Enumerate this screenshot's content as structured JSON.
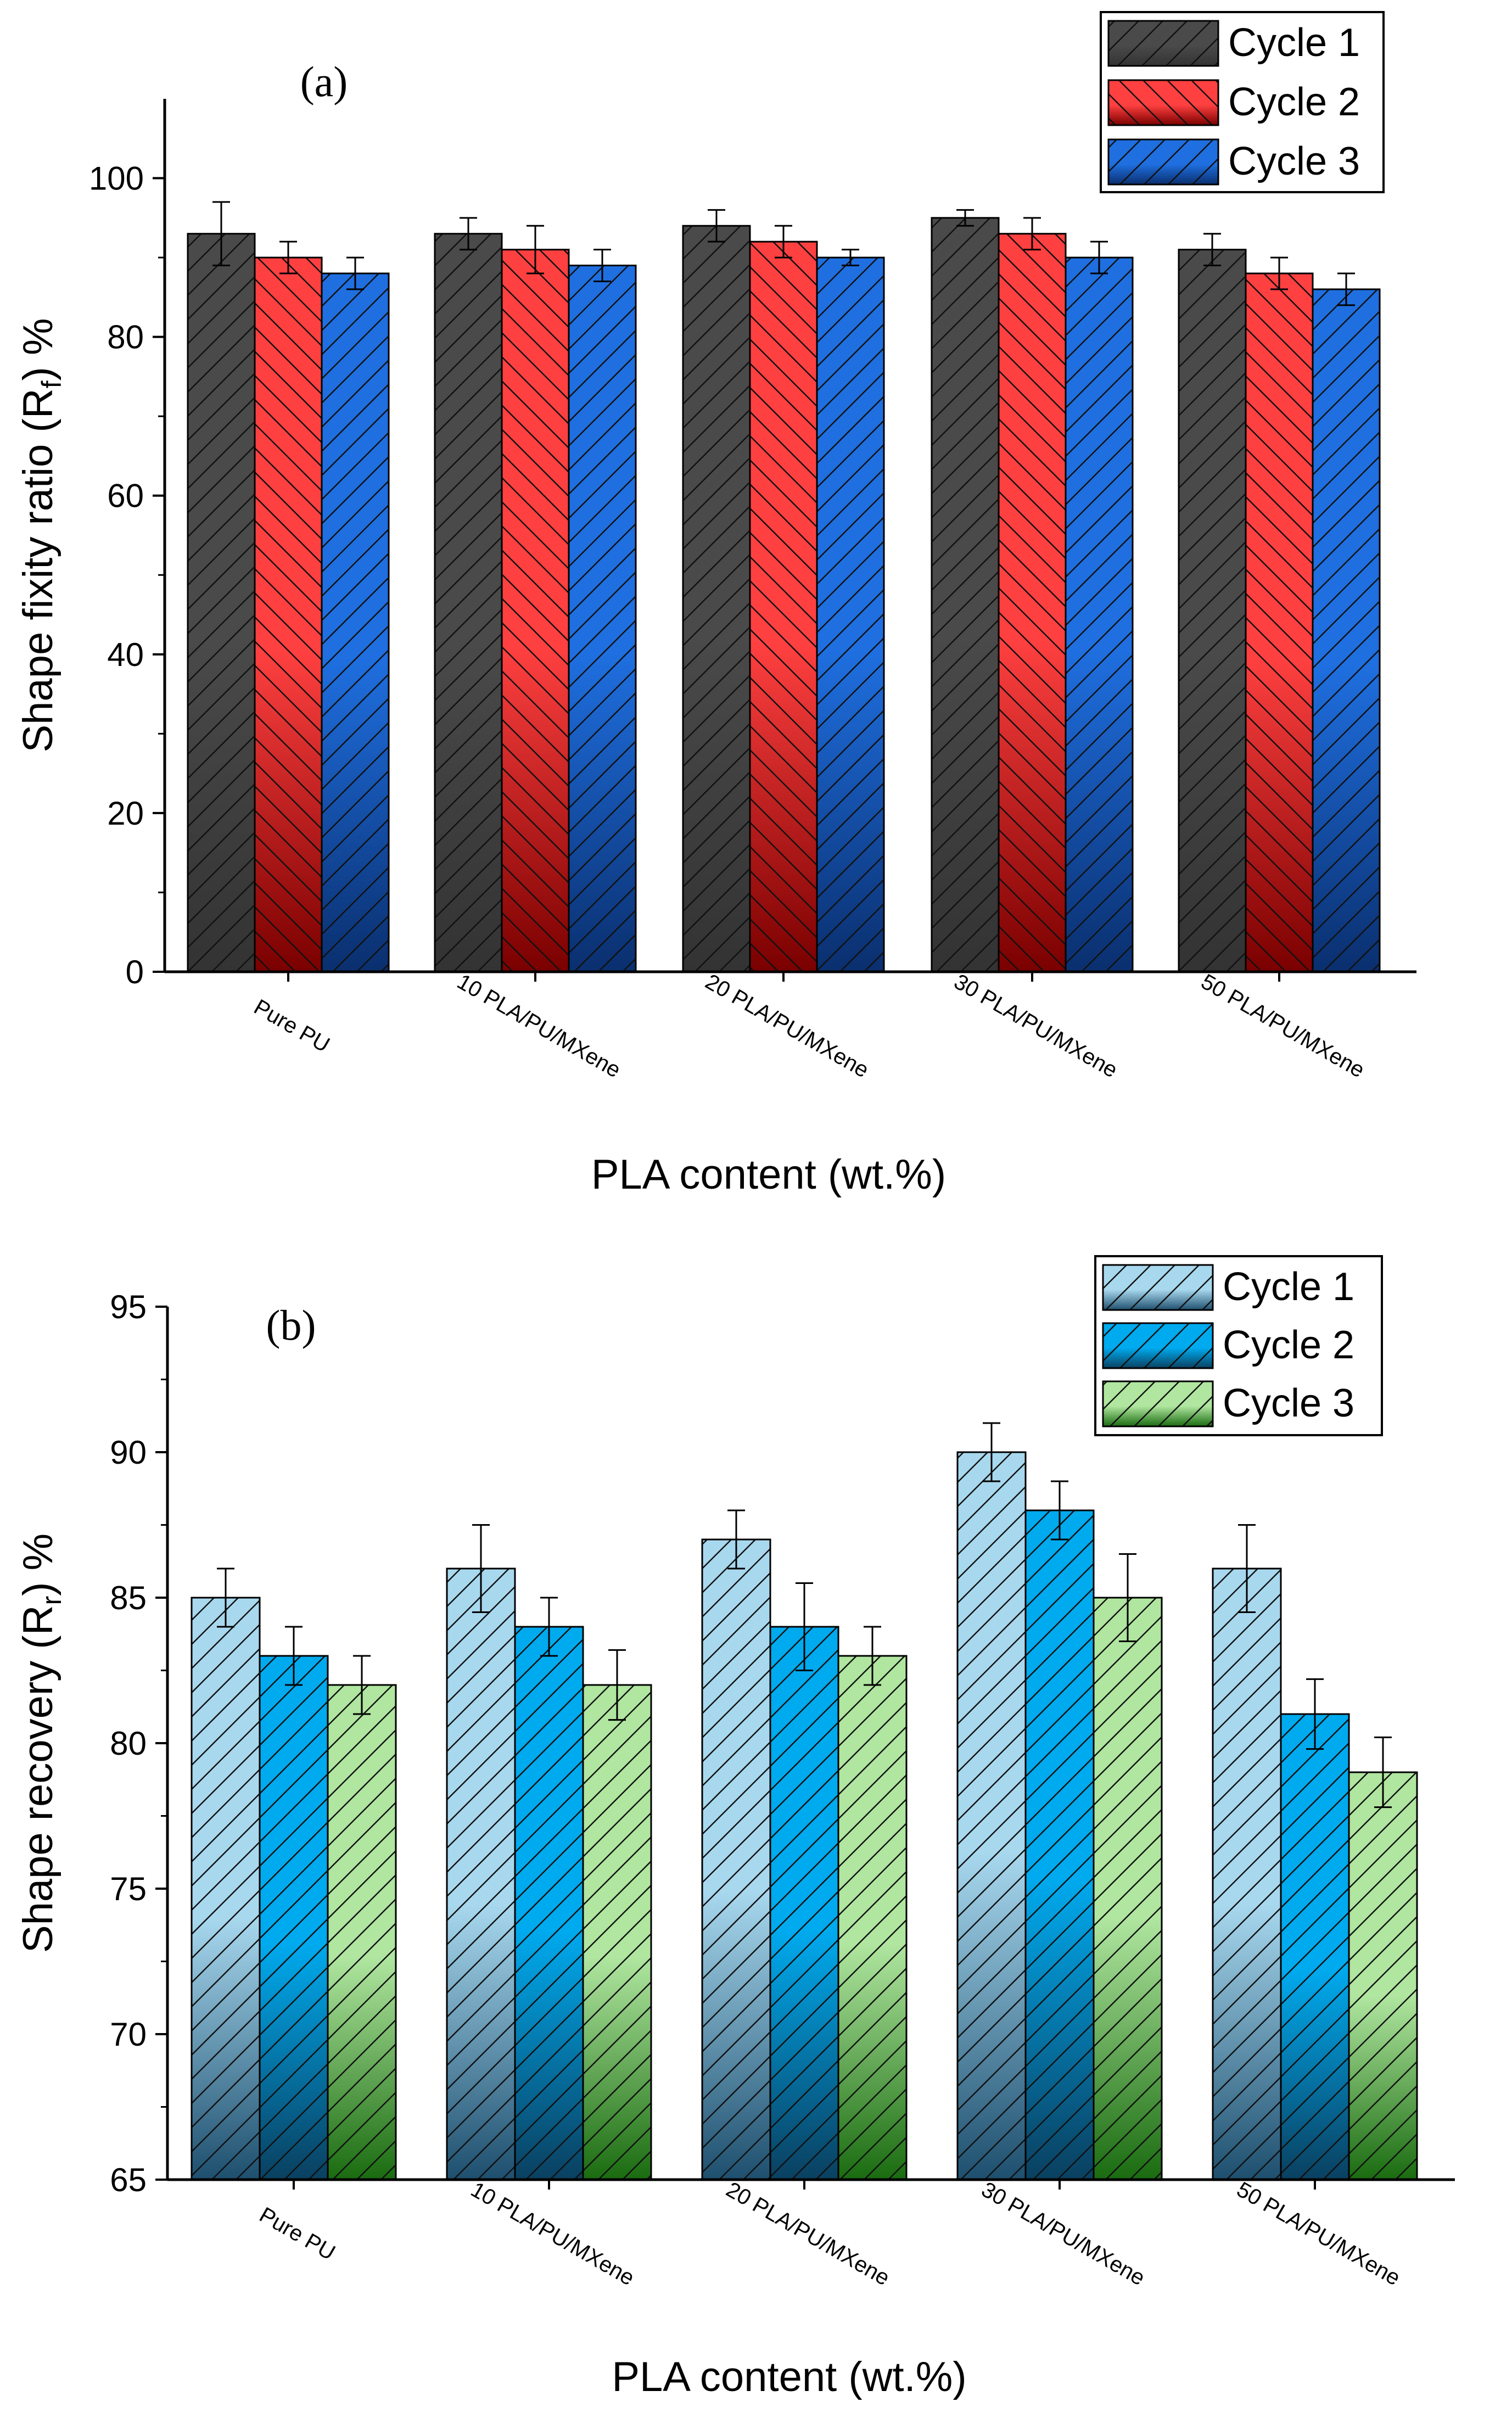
{
  "chart_data": [
    {
      "type": "bar",
      "panel_label": "(a)",
      "xlabel": "PLA content (wt.%)",
      "ylabel_main": "Shape fixity ratio (R",
      "ylabel_sub": "f",
      "ylabel_tail": ") %",
      "categories": [
        "Pure PU",
        "10 PLA/PU/MXene",
        "20 PLA/PU/MXene",
        "30 PLA/PU/MXene",
        "50 PLA/PU/MXene"
      ],
      "ylim": [
        0,
        110
      ],
      "yticks": [
        0,
        20,
        40,
        60,
        80,
        100
      ],
      "legend_position": "top-right",
      "series": [
        {
          "name": "Cycle 1",
          "values": [
            93,
            93,
            94,
            95,
            91
          ],
          "errors": [
            4,
            2,
            2,
            1,
            2
          ],
          "color_top": "#4a4a4a",
          "color_bottom": "#333333"
        },
        {
          "name": "Cycle 2",
          "values": [
            90,
            91,
            92,
            93,
            88
          ],
          "errors": [
            2,
            3,
            2,
            2,
            2
          ],
          "color_top": "#ff4040",
          "color_bottom": "#7a0000"
        },
        {
          "name": "Cycle 3",
          "values": [
            88,
            89,
            90,
            90,
            86
          ],
          "errors": [
            2,
            2,
            1,
            2,
            2
          ],
          "color_top": "#1f6fe0",
          "color_bottom": "#0a2f6e"
        }
      ]
    },
    {
      "type": "bar",
      "panel_label": "(b)",
      "xlabel": "PLA content (wt.%)",
      "ylabel_main": "Shape  recovery (R",
      "ylabel_sub": "r",
      "ylabel_tail": ") %",
      "categories": [
        "Pure PU",
        "10 PLA/PU/MXene",
        "20 PLA/PU/MXene",
        "30 PLA/PU/MXene",
        "50 PLA/PU/MXene"
      ],
      "ylim": [
        65,
        95
      ],
      "yticks": [
        65,
        70,
        75,
        80,
        85,
        90,
        95
      ],
      "legend_position": "top-right",
      "series": [
        {
          "name": "Cycle 1",
          "values": [
            85,
            86,
            87,
            90,
            86
          ],
          "errors": [
            1,
            1.5,
            1,
            1,
            1.5
          ],
          "color_top": "#a8d8ee",
          "color_bottom": "#1e4f6e"
        },
        {
          "name": "Cycle 2",
          "values": [
            83,
            84,
            84,
            88,
            81
          ],
          "errors": [
            1,
            1,
            1.5,
            1,
            1.2
          ],
          "color_top": "#00aaee",
          "color_bottom": "#0a4060"
        },
        {
          "name": "Cycle 3",
          "values": [
            82,
            82,
            83,
            85,
            79
          ],
          "errors": [
            1,
            1.2,
            1,
            1.5,
            1.2
          ],
          "color_top": "#b0e6a0",
          "color_bottom": "#1a6b10"
        }
      ]
    }
  ]
}
